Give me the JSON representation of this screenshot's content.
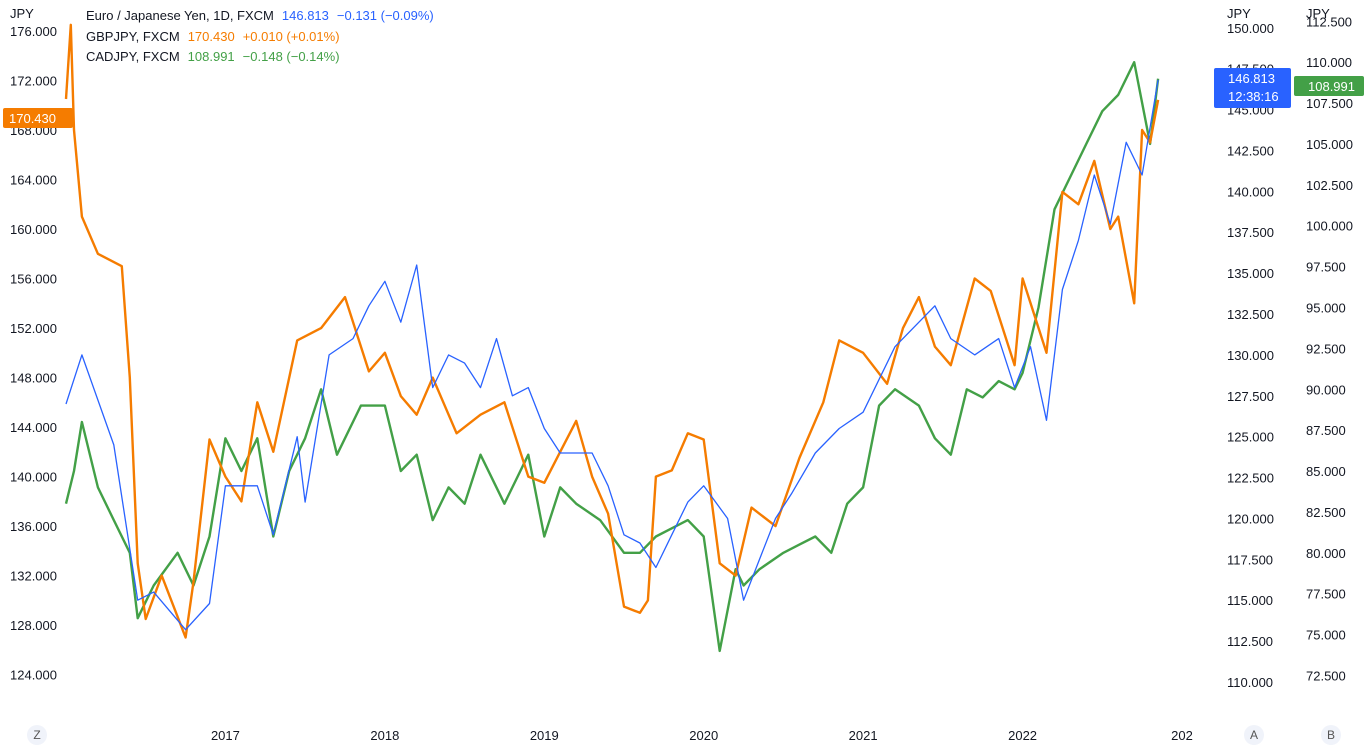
{
  "chart_data": {
    "type": "line",
    "interval": "1D",
    "x_axis": {
      "ticks": [
        "2017",
        "2018",
        "2019",
        "2020",
        "2021",
        "2022",
        "202"
      ],
      "range": [
        2016.0,
        2023.0
      ]
    },
    "left_axis": {
      "unit": "JPY",
      "range": [
        120.5,
        178.5
      ],
      "ticks": [
        "176.000",
        "172.000",
        "168.000",
        "164.000",
        "160.000",
        "156.000",
        "152.000",
        "148.000",
        "144.000",
        "140.000",
        "136.000",
        "132.000",
        "128.000",
        "124.000"
      ]
    },
    "right_axis_a": {
      "unit": "JPY",
      "range": [
        107.8,
        151.7
      ],
      "ticks": [
        "150.000",
        "147.500",
        "145.000",
        "142.500",
        "140.000",
        "137.500",
        "135.000",
        "132.500",
        "130.000",
        "127.500",
        "125.000",
        "122.500",
        "120.000",
        "117.500",
        "115.000",
        "112.500",
        "110.000"
      ]
    },
    "right_axis_b": {
      "unit": "JPY",
      "range": [
        69.9,
        113.8
      ],
      "ticks": [
        "112.500",
        "110.000",
        "107.500",
        "105.000",
        "102.500",
        "100.000",
        "97.500",
        "95.000",
        "92.500",
        "90.000",
        "87.500",
        "85.000",
        "82.500",
        "80.000",
        "77.500",
        "75.000",
        "72.500"
      ]
    },
    "series": [
      {
        "name": "Euro / Japanese Yen, 1D, FXCM",
        "symbol": "EURJPY",
        "axis": "right_a",
        "color": "#2962ff",
        "price": "146.813",
        "change": "−0.131",
        "change_pct": "(−0.09%)",
        "x": [
          2016.0,
          2016.1,
          2016.3,
          2016.45,
          2016.55,
          2016.75,
          2016.9,
          2017.0,
          2017.2,
          2017.3,
          2017.45,
          2017.5,
          2017.65,
          2017.8,
          2017.9,
          2018.0,
          2018.1,
          2018.2,
          2018.3,
          2018.4,
          2018.5,
          2018.6,
          2018.7,
          2018.8,
          2018.9,
          2019.0,
          2019.1,
          2019.3,
          2019.4,
          2019.5,
          2019.6,
          2019.7,
          2019.8,
          2019.9,
          2020.0,
          2020.15,
          2020.25,
          2020.35,
          2020.45,
          2020.55,
          2020.7,
          2020.85,
          2021.0,
          2021.2,
          2021.35,
          2021.45,
          2021.55,
          2021.7,
          2021.85,
          2021.95,
          2022.05,
          2022.15,
          2022.25,
          2022.35,
          2022.45,
          2022.55,
          2022.65,
          2022.75,
          2022.85
        ],
        "y": [
          127.0,
          130.0,
          124.5,
          115.0,
          115.5,
          113.2,
          114.8,
          122.0,
          122.0,
          119.0,
          125.0,
          121.0,
          130.0,
          131.0,
          133.0,
          134.5,
          132.0,
          135.5,
          128.0,
          130.0,
          129.5,
          128.0,
          131.0,
          127.5,
          128.0,
          125.5,
          124.0,
          124.0,
          122.0,
          119.0,
          118.5,
          117.0,
          119.0,
          121.0,
          122.0,
          120.0,
          115.0,
          117.5,
          120.0,
          121.5,
          124.0,
          125.5,
          126.5,
          130.5,
          132.0,
          133.0,
          131.0,
          130.0,
          131.0,
          128.0,
          130.5,
          126.0,
          134.0,
          137.0,
          141.0,
          138.0,
          143.0,
          141.0,
          146.813
        ]
      },
      {
        "name": "GBPJPY, FXCM",
        "symbol": "GBPJPY",
        "axis": "left",
        "color": "#f57c00",
        "price": "170.430",
        "change": "+0.010",
        "change_pct": "(+0.01%)",
        "x": [
          2016.0,
          2016.03,
          2016.05,
          2016.1,
          2016.2,
          2016.35,
          2016.4,
          2016.45,
          2016.5,
          2016.6,
          2016.75,
          2016.8,
          2016.9,
          2017.0,
          2017.1,
          2017.2,
          2017.3,
          2017.45,
          2017.6,
          2017.75,
          2017.9,
          2018.0,
          2018.1,
          2018.2,
          2018.3,
          2018.45,
          2018.6,
          2018.75,
          2018.9,
          2019.0,
          2019.1,
          2019.2,
          2019.3,
          2019.4,
          2019.5,
          2019.6,
          2019.65,
          2019.7,
          2019.8,
          2019.9,
          2020.0,
          2020.1,
          2020.2,
          2020.3,
          2020.45,
          2020.6,
          2020.75,
          2020.85,
          2021.0,
          2021.15,
          2021.25,
          2021.35,
          2021.45,
          2021.55,
          2021.7,
          2021.8,
          2021.95,
          2022.0,
          2022.15,
          2022.25,
          2022.35,
          2022.45,
          2022.55,
          2022.6,
          2022.7,
          2022.75,
          2022.8,
          2022.85
        ],
        "y": [
          170.5,
          176.5,
          168.0,
          161.0,
          158.0,
          157.0,
          148.0,
          133.0,
          128.5,
          132.0,
          127.0,
          131.5,
          143.0,
          140.0,
          138.0,
          146.0,
          142.0,
          151.0,
          152.0,
          154.5,
          148.5,
          150.0,
          146.5,
          145.0,
          148.0,
          143.5,
          145.0,
          146.0,
          140.0,
          139.5,
          142.0,
          144.5,
          140.0,
          137.0,
          129.5,
          129.0,
          130.0,
          140.0,
          140.5,
          143.5,
          143.0,
          133.0,
          132.0,
          137.5,
          136.0,
          141.5,
          146.0,
          151.0,
          150.0,
          147.5,
          152.0,
          154.5,
          150.5,
          149.0,
          156.0,
          155.0,
          149.0,
          156.0,
          150.0,
          163.0,
          162.0,
          165.5,
          160.0,
          161.0,
          154.0,
          168.0,
          167.0,
          170.43
        ]
      },
      {
        "name": "CADJPY, FXCM",
        "symbol": "CADJPY",
        "axis": "right_b",
        "color": "#43a047",
        "price": "108.991",
        "change": "−0.148",
        "change_pct": "(−0.14%)",
        "x": [
          2016.0,
          2016.05,
          2016.1,
          2016.2,
          2016.3,
          2016.4,
          2016.45,
          2016.55,
          2016.7,
          2016.8,
          2016.9,
          2017.0,
          2017.1,
          2017.2,
          2017.3,
          2017.4,
          2017.5,
          2017.6,
          2017.7,
          2017.85,
          2018.0,
          2018.1,
          2018.2,
          2018.3,
          2018.4,
          2018.5,
          2018.6,
          2018.75,
          2018.9,
          2019.0,
          2019.1,
          2019.2,
          2019.35,
          2019.5,
          2019.6,
          2019.7,
          2019.8,
          2019.9,
          2020.0,
          2020.1,
          2020.2,
          2020.25,
          2020.35,
          2020.5,
          2020.6,
          2020.7,
          2020.8,
          2020.9,
          2021.0,
          2021.1,
          2021.2,
          2021.35,
          2021.45,
          2021.55,
          2021.65,
          2021.75,
          2021.85,
          2021.95,
          2022.0,
          2022.1,
          2022.2,
          2022.3,
          2022.4,
          2022.5,
          2022.6,
          2022.7,
          2022.8,
          2022.85
        ],
        "y": [
          83.0,
          85.0,
          88.0,
          84.0,
          82.0,
          80.0,
          76.0,
          78.0,
          80.0,
          78.0,
          81.0,
          87.0,
          85.0,
          87.0,
          81.0,
          85.0,
          87.0,
          90.0,
          86.0,
          89.0,
          89.0,
          85.0,
          86.0,
          82.0,
          84.0,
          83.0,
          86.0,
          83.0,
          86.0,
          81.0,
          84.0,
          83.0,
          82.0,
          80.0,
          80.0,
          81.0,
          81.5,
          82.0,
          81.0,
          74.0,
          79.0,
          78.0,
          79.0,
          80.0,
          80.5,
          81.0,
          80.0,
          83.0,
          84.0,
          89.0,
          90.0,
          89.0,
          87.0,
          86.0,
          90.0,
          89.5,
          90.5,
          90.0,
          91.0,
          95.0,
          101.0,
          103.0,
          105.0,
          107.0,
          108.0,
          110.0,
          105.0,
          108.991
        ]
      }
    ]
  },
  "legend": [
    {
      "name": "Euro / Japanese Yen, 1D, FXCM",
      "value": "146.813",
      "change": "−0.131 (−0.09%)",
      "color": "#2962ff"
    },
    {
      "name": "GBPJPY, FXCM",
      "value": "170.430",
      "change": "+0.010 (+0.01%)",
      "color": "#f57c00"
    },
    {
      "name": "CADJPY, FXCM",
      "value": "108.991",
      "change": "−0.148 (−0.14%)",
      "color": "#43a047"
    }
  ],
  "price_badges": {
    "gbpjpy": "170.430",
    "eurjpy_price": "146.813",
    "eurjpy_countdown": "12:38:16",
    "cadjpy": "108.991"
  },
  "axis_buttons": {
    "left": "Z",
    "right_a": "A",
    "right_b": "B"
  }
}
